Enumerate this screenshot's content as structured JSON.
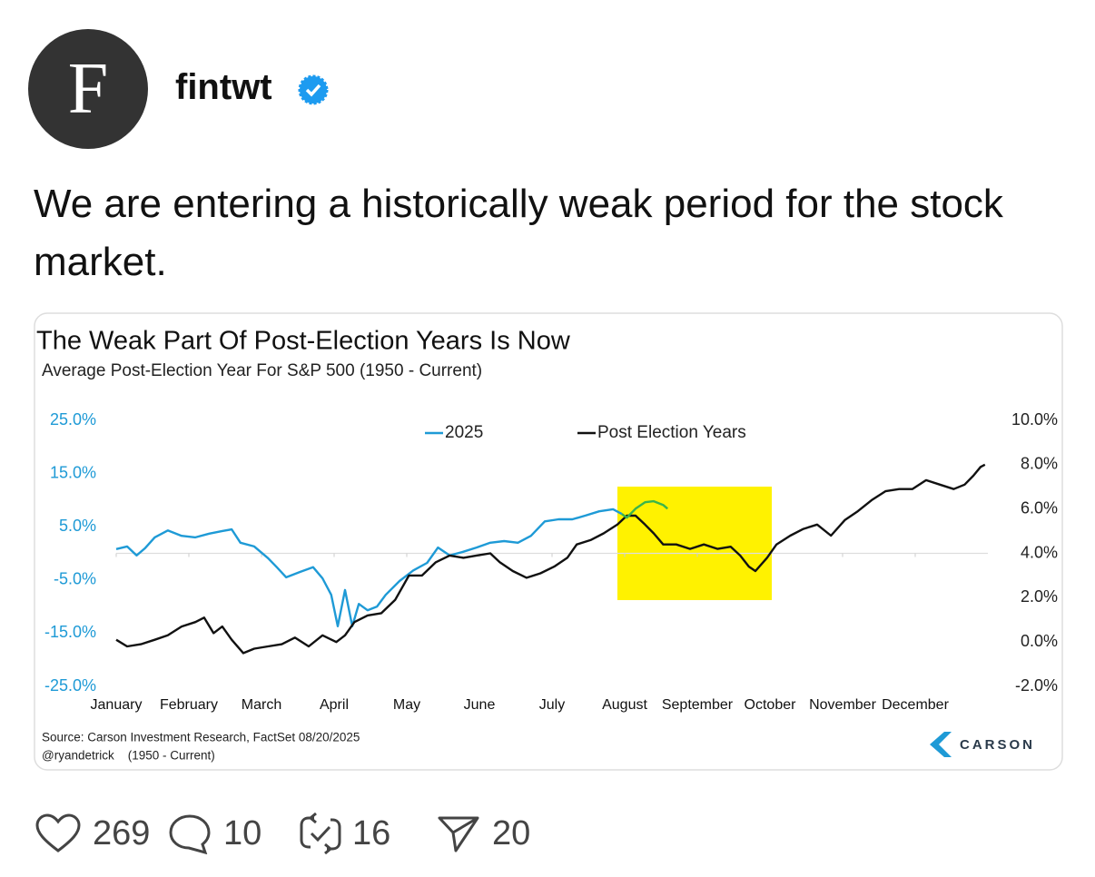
{
  "post": {
    "avatar_letter": "F",
    "author": "fintwt",
    "text": "We are entering a historically weak period for the stock market."
  },
  "chart_data": {
    "type": "line",
    "title": "The Weak Part Of Post-Election Years Is Now",
    "subtitle": "Average Post-Election Year For S&P 500 (1950 - Current)",
    "categories": [
      "January",
      "February",
      "March",
      "April",
      "May",
      "June",
      "July",
      "August",
      "September",
      "October",
      "November",
      "December"
    ],
    "xlim": [
      0,
      12
    ],
    "ylim": [
      -25,
      25
    ],
    "yticks": [
      {
        "value": 25,
        "label": "25.0%"
      },
      {
        "value": 15,
        "label": "15.0%"
      },
      {
        "value": 5,
        "label": "5.0%"
      },
      {
        "value": -5,
        "label": "-5.0%"
      },
      {
        "value": -15,
        "label": "-15.0%"
      },
      {
        "value": -25,
        "label": "-25.0%"
      }
    ],
    "y2lim": [
      -2,
      10
    ],
    "y2ticks": [
      {
        "value": 10,
        "label": "10.0%"
      },
      {
        "value": 8,
        "label": "8.0%"
      },
      {
        "value": 6,
        "label": "6.0%"
      },
      {
        "value": 4,
        "label": "4.0%"
      },
      {
        "value": 2,
        "label": "2.0%"
      },
      {
        "value": 0,
        "label": "0.0%"
      },
      {
        "value": -2,
        "label": "-2.0%"
      }
    ],
    "grid": false,
    "series": [
      {
        "name": "2025",
        "color": "#1e9ad6",
        "x": [
          0,
          0.15,
          0.28,
          0.4,
          0.53,
          0.71,
          0.9,
          1.09,
          1.28,
          1.46,
          1.59,
          1.71,
          1.9,
          2.09,
          2.21,
          2.34,
          2.53,
          2.71,
          2.84,
          2.96,
          3.05,
          3.15,
          3.25,
          3.34,
          3.46,
          3.59,
          3.71,
          3.9,
          4.09,
          4.28,
          4.43,
          4.59,
          4.78,
          4.96,
          5.15,
          5.34,
          5.53,
          5.71,
          5.9,
          6.09,
          6.28,
          6.46,
          6.65,
          6.84,
          6.96
        ],
        "values": [
          0.8,
          1.3,
          -0.4,
          1,
          3,
          4.3,
          3.3,
          3,
          3.7,
          4.2,
          4.5,
          2,
          1.3,
          -0.9,
          -2.6,
          -4.5,
          -3.5,
          -2.6,
          -4.7,
          -7.8,
          -13.7,
          -6.9,
          -13.7,
          -9.5,
          -10.7,
          -10,
          -7.8,
          -5.2,
          -3.2,
          -1.8,
          1.1,
          -0.4,
          0.3,
          1.1,
          2,
          2.3,
          2,
          3.3,
          6,
          6.4,
          6.4,
          7.1,
          7.9,
          8.3,
          7.4
        ]
      },
      {
        "name": "Post Election Years",
        "color": "#111111",
        "axis": "y2",
        "x": [
          0,
          0.15,
          0.34,
          0.53,
          0.71,
          0.9,
          1.09,
          1.21,
          1.34,
          1.46,
          1.59,
          1.75,
          1.9,
          2.09,
          2.28,
          2.46,
          2.65,
          2.84,
          3.03,
          3.15,
          3.28,
          3.46,
          3.65,
          3.84,
          4.03,
          4.21,
          4.4,
          4.59,
          4.78,
          4.96,
          5.15,
          5.28,
          5.46,
          5.65,
          5.84,
          6.03,
          6.21,
          6.34,
          6.53,
          6.71,
          6.9,
          7.03,
          7.15,
          7.28,
          7.4,
          7.53,
          7.71,
          7.9,
          8.09,
          8.28,
          8.46,
          8.59,
          8.71,
          8.8,
          8.96,
          9.09,
          9.28,
          9.46,
          9.65,
          9.84,
          10.03,
          10.21,
          10.4,
          10.59,
          10.78,
          10.96,
          11.15,
          11.34,
          11.53,
          11.68,
          11.8,
          11.9,
          11.96
        ],
        "values": [
          0.1,
          -0.2,
          -0.1,
          0.1,
          0.3,
          0.7,
          0.9,
          1.1,
          0.4,
          0.7,
          0.1,
          -0.5,
          -0.3,
          -0.2,
          -0.1,
          0.2,
          -0.2,
          0.3,
          0,
          0.3,
          0.9,
          1.2,
          1.3,
          1.9,
          3.0,
          3.0,
          3.6,
          3.9,
          3.8,
          3.9,
          4.0,
          3.6,
          3.2,
          2.9,
          3.1,
          3.4,
          3.8,
          4.4,
          4.6,
          4.9,
          5.3,
          5.7,
          5.7,
          5.3,
          4.9,
          4.4,
          4.4,
          4.2,
          4.4,
          4.2,
          4.3,
          3.9,
          3.4,
          3.2,
          3.8,
          4.4,
          4.8,
          5.1,
          5.3,
          4.8,
          5.5,
          5.9,
          6.4,
          6.8,
          6.9,
          6.9,
          7.3,
          7.1,
          6.9,
          7.1,
          7.5,
          7.9,
          8.0
        ]
      },
      {
        "color": "#3bb54a",
        "x": [
          6.96,
          7.03,
          7.15,
          7.28,
          7.4,
          7.53,
          7.59
        ],
        "values": [
          7.4,
          6.7,
          8.4,
          9.6,
          9.8,
          9.1,
          8.4
        ]
      }
    ],
    "source": "Source: Carson Investment Research, FactSet 08/20/2025",
    "credit": "@ryandetrick    (1950 - Current)",
    "brand": "CARSON"
  },
  "actions": {
    "likes": 269,
    "replies": 10,
    "reposts": 16,
    "shares": 20
  }
}
